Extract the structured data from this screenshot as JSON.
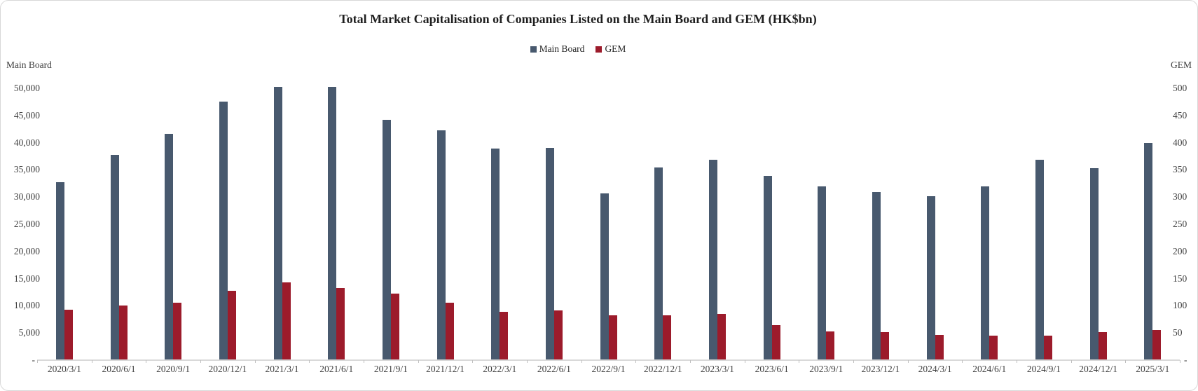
{
  "title": "Total Market Capitalisation of Companies Listed on the Main Board and GEM (HK$bn)",
  "left_axis": {
    "label": "Main Board",
    "ticks": [
      "50,000",
      "45,000",
      "40,000",
      "35,000",
      "30,000",
      "25,000",
      "20,000",
      "15,000",
      "10,000",
      "5,000",
      "-"
    ]
  },
  "right_axis": {
    "label": "GEM",
    "ticks": [
      "500",
      "450",
      "400",
      "350",
      "300",
      "250",
      "200",
      "150",
      "100",
      "50",
      "-"
    ]
  },
  "colors": {
    "main_board_bar": "#48596E",
    "gem_bar": "#9C1B2B",
    "axis_line": "#D9D9D9",
    "tick_text": "#3F3F3F",
    "title_text": "#1F1F1F"
  },
  "chart_data": {
    "type": "bar",
    "title": "Total Market Capitalisation of Companies Listed on the Main Board and GEM (HK$bn)",
    "categories": [
      "2020/3/1",
      "2020/6/1",
      "2020/9/1",
      "2020/12/1",
      "2021/3/1",
      "2021/6/1",
      "2021/9/1",
      "2021/12/1",
      "2022/3/1",
      "2022/6/1",
      "2022/9/1",
      "2022/12/1",
      "2023/3/1",
      "2023/6/1",
      "2023/9/1",
      "2023/12/1",
      "2024/3/1",
      "2024/6/1",
      "2024/9/1",
      "2024/12/1",
      "2025/3/1"
    ],
    "series": [
      {
        "name": "Main Board",
        "axis": "left",
        "color": "#48596E",
        "values": [
          32700,
          37800,
          41600,
          47500,
          50200,
          50200,
          44200,
          42300,
          38900,
          39100,
          30700,
          35500,
          36800,
          33900,
          32000,
          30900,
          30100,
          32000,
          36800,
          35300,
          39900
        ]
      },
      {
        "name": "GEM",
        "axis": "right",
        "color": "#9C1B2B",
        "values": [
          93,
          100,
          106,
          128,
          143,
          133,
          123,
          106,
          89,
          92,
          82,
          82,
          85,
          64,
          53,
          51,
          47,
          45,
          45,
          52,
          55
        ]
      }
    ],
    "left_ylabel": "Main Board",
    "right_ylabel": "GEM",
    "left_ylim": [
      0,
      50000
    ],
    "right_ylim": [
      0,
      500
    ],
    "grid": false,
    "legend_position": "top"
  }
}
